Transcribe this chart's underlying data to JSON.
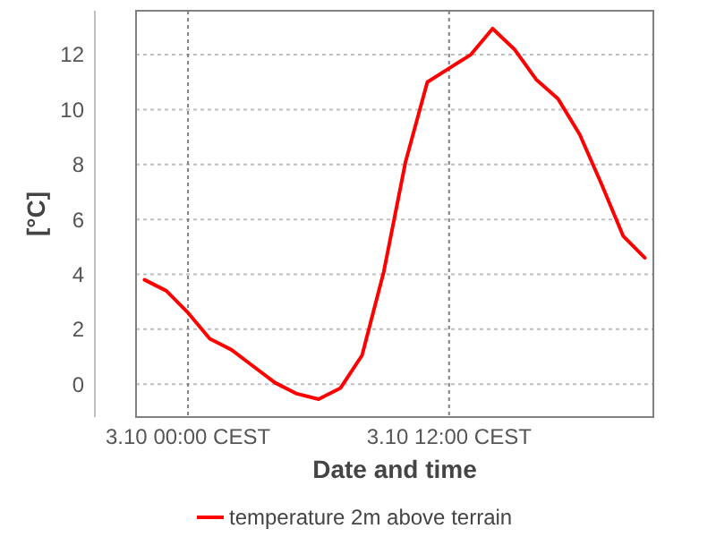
{
  "chart_data": {
    "type": "line",
    "xlabel": "Date and time",
    "ylabel": "[°C]",
    "categories": [
      null,
      null,
      "3.10 00:00 CEST",
      null,
      null,
      null,
      null,
      null,
      null,
      null,
      null,
      null,
      null,
      null,
      "3.10 12:00 CEST",
      null,
      null,
      null,
      null,
      null,
      null,
      null,
      null,
      null
    ],
    "series": [
      {
        "name": "temperature 2m above terrain",
        "color": "#ff0000",
        "values": [
          3.8,
          3.4,
          2.6,
          1.65,
          1.25,
          0.65,
          0.05,
          -0.35,
          -0.55,
          -0.15,
          1.05,
          4.1,
          8.1,
          11.0,
          11.5,
          12.0,
          12.95,
          12.2,
          11.1,
          10.4,
          9.1,
          7.3,
          5.4,
          4.6
        ]
      }
    ],
    "ylim": [
      -1.2,
      13.6
    ],
    "yticks": [
      0,
      2,
      4,
      6,
      8,
      10,
      12
    ],
    "grid": true,
    "legend": "bottom",
    "marker": "none",
    "line_style": "solid"
  }
}
